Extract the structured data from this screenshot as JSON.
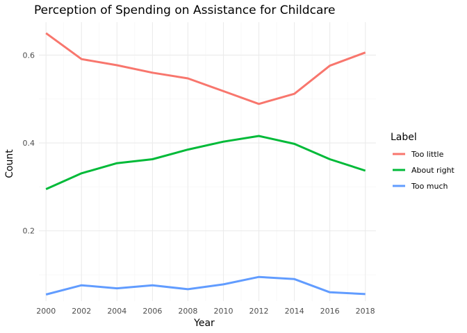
{
  "chart_data": {
    "type": "line",
    "title": "Perception of Spending on Assistance for Childcare",
    "xlabel": "Year",
    "ylabel": "Count",
    "x": [
      2000,
      2002,
      2004,
      2006,
      2008,
      2010,
      2012,
      2014,
      2016,
      2018
    ],
    "x_ticks": [
      "2000",
      "2002",
      "2004",
      "2006",
      "2008",
      "2010",
      "2012",
      "2014",
      "2016",
      "2018"
    ],
    "y_ticks": [
      0.2,
      0.4,
      0.6
    ],
    "y_tick_labels": [
      "0.2",
      "0.4",
      "0.6"
    ],
    "xlim": [
      1999.6,
      2018.6
    ],
    "ylim": [
      0.04,
      0.675
    ],
    "grid": true,
    "legend": {
      "title": "Label",
      "position": "right"
    },
    "series": [
      {
        "name": "Too little",
        "color": "#F8766D",
        "values": [
          0.65,
          0.591,
          0.577,
          0.56,
          0.547,
          0.518,
          0.489,
          0.512,
          0.576,
          0.606
        ]
      },
      {
        "name": "About right",
        "color": "#00BA38",
        "values": [
          0.295,
          0.331,
          0.354,
          0.363,
          0.385,
          0.403,
          0.416,
          0.398,
          0.363,
          0.337
        ]
      },
      {
        "name": "Too much",
        "color": "#619CFF",
        "values": [
          0.055,
          0.076,
          0.069,
          0.076,
          0.067,
          0.078,
          0.095,
          0.09,
          0.06,
          0.056
        ]
      }
    ]
  }
}
